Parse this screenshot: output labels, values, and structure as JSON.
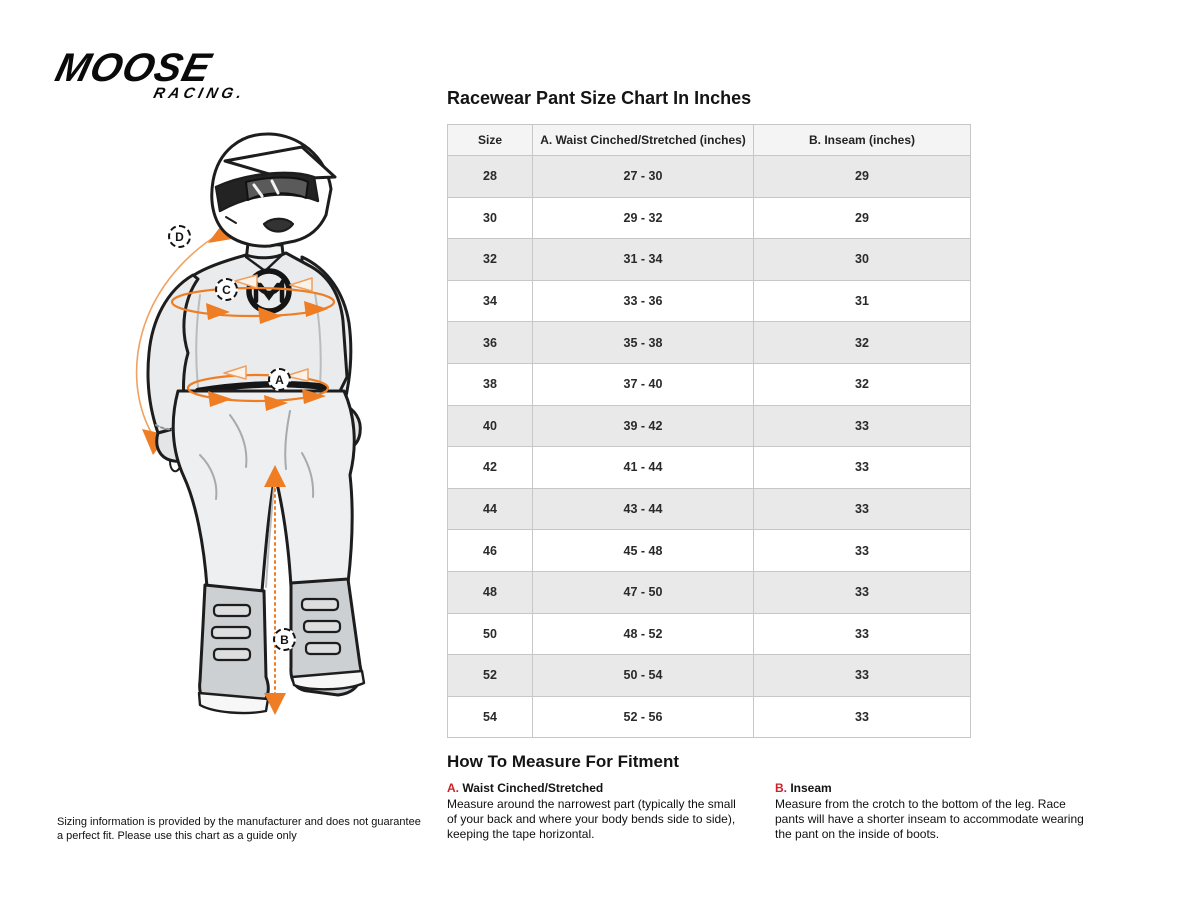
{
  "brand": {
    "line1": "MOOSE",
    "line2": "RACING."
  },
  "accent_color": "#ee7d23",
  "title": "Racewear Pant Size Chart In Inches",
  "table": {
    "headers": [
      "Size",
      "A. Waist Cinched/Stretched (inches)",
      "B. Inseam (inches)"
    ],
    "rows": [
      [
        "28",
        "27 - 30",
        "29"
      ],
      [
        "30",
        "29 - 32",
        "29"
      ],
      [
        "32",
        "31 - 34",
        "30"
      ],
      [
        "34",
        "33 - 36",
        "31"
      ],
      [
        "36",
        "35 - 38",
        "32"
      ],
      [
        "38",
        "37 - 40",
        "32"
      ],
      [
        "40",
        "39 - 42",
        "33"
      ],
      [
        "42",
        "41 - 44",
        "33"
      ],
      [
        "44",
        "43 - 44",
        "33"
      ],
      [
        "46",
        "45 - 48",
        "33"
      ],
      [
        "48",
        "47 - 50",
        "33"
      ],
      [
        "50",
        "48 - 52",
        "33"
      ],
      [
        "52",
        "50 - 54",
        "33"
      ],
      [
        "54",
        "52 - 56",
        "33"
      ]
    ]
  },
  "how_to": {
    "heading": "How To Measure For Fitment",
    "items": [
      {
        "letter": "A.",
        "name": "Waist Cinched/Stretched",
        "text": "Measure around the narrowest part (typically the small of your back and where your body bends side to side), keeping the tape horizontal."
      },
      {
        "letter": "B.",
        "name": "Inseam",
        "text": "Measure from the crotch to the bottom of the leg. Race pants will have a shorter inseam to accommodate wearing the pant on the inside of boots."
      }
    ]
  },
  "figure": {
    "markers": [
      {
        "label": "D"
      },
      {
        "label": "C"
      },
      {
        "label": "A"
      },
      {
        "label": "B"
      }
    ]
  },
  "disclaimer": "Sizing information is provided by the manufacturer and does not guarantee a perfect fit. Please use this chart as a guide only"
}
